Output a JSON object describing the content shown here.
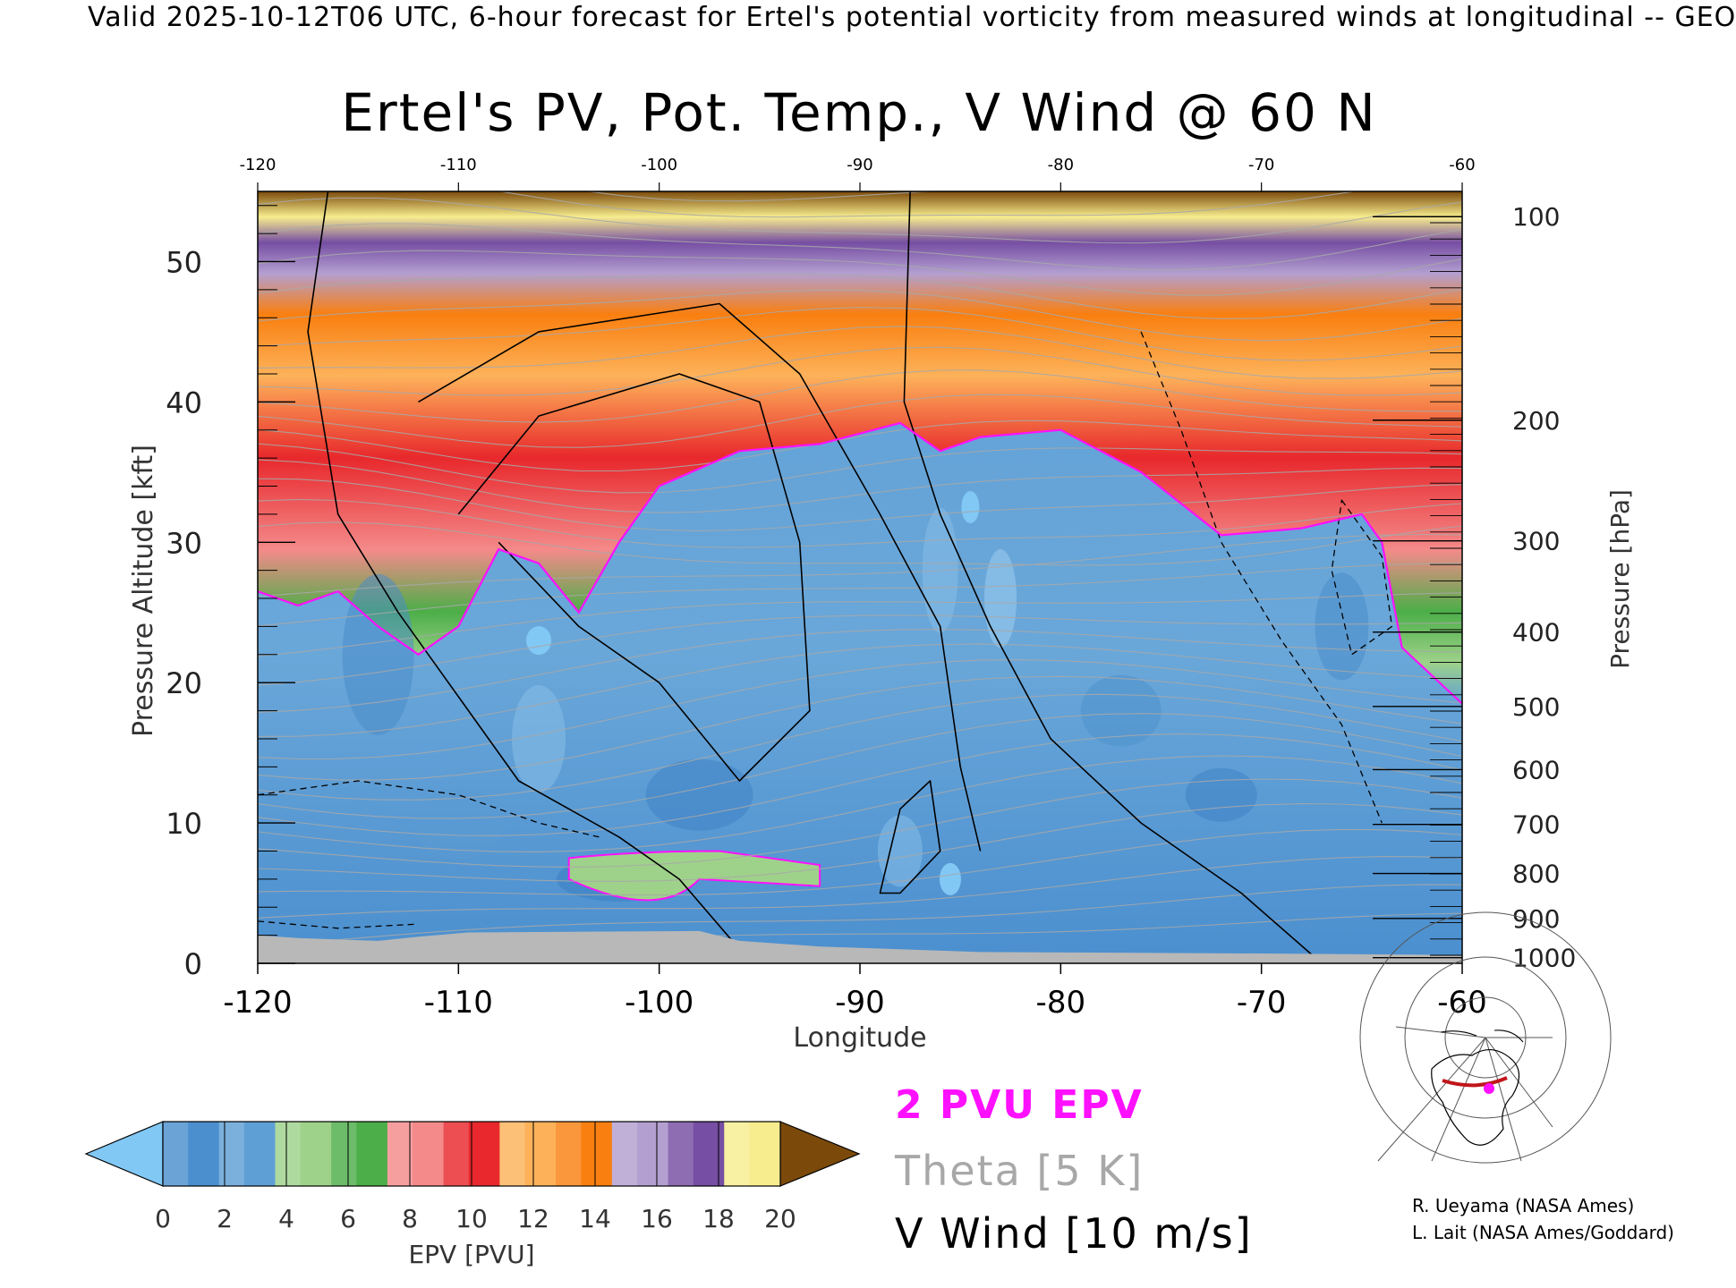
{
  "header": {
    "valid_line": "Valid 2025-10-12T06 UTC, 6-hour forecast for Ertel's potential vorticity from measured winds at longitudinal -- GEO"
  },
  "chart_data": {
    "type": "heatmap",
    "title": "Ertel's PV, Pot. Temp., V Wind @ 60 N",
    "xlabel": "Longitude",
    "ylabel": "Pressure Altitude [kft]",
    "y2label": "Pressure [hPa]",
    "xlim": [
      -120,
      -60
    ],
    "ylim": [
      0,
      55
    ],
    "x_ticks": [
      "-120",
      "-110",
      "-100",
      "-90",
      "-80",
      "-70",
      "-60"
    ],
    "x_ticks_top": [
      "-120",
      "-110",
      "-100",
      "-90",
      "-80",
      "-70",
      "-60"
    ],
    "y_ticks": [
      "0",
      "10",
      "20",
      "30",
      "40",
      "50"
    ],
    "pressure_ticks": [
      {
        "label": "100",
        "kft": 53.2
      },
      {
        "label": "200",
        "kft": 38.7
      },
      {
        "label": "300",
        "kft": 30.1
      },
      {
        "label": "400",
        "kft": 23.6
      },
      {
        "label": "500",
        "kft": 18.3
      },
      {
        "label": "600",
        "kft": 13.8
      },
      {
        "label": "700",
        "kft": 9.9
      },
      {
        "label": "800",
        "kft": 6.4
      },
      {
        "label": "900",
        "kft": 3.2
      },
      {
        "label": "1000",
        "kft": 0.4
      }
    ],
    "tropopause_2pvu_kft": [
      [
        -120,
        26.5
      ],
      [
        -118,
        25.5
      ],
      [
        -116,
        26.5
      ],
      [
        -114,
        24.0
      ],
      [
        -112,
        22.0
      ],
      [
        -110,
        24.0
      ],
      [
        -108,
        29.5
      ],
      [
        -106,
        28.5
      ],
      [
        -104,
        25.0
      ],
      [
        -102,
        30.0
      ],
      [
        -100,
        34.0
      ],
      [
        -96,
        36.5
      ],
      [
        -92,
        37.0
      ],
      [
        -88,
        38.5
      ],
      [
        -86,
        36.5
      ],
      [
        -84,
        37.5
      ],
      [
        -80,
        38.0
      ],
      [
        -76,
        35.0
      ],
      [
        -72,
        30.5
      ],
      [
        -68,
        31.0
      ],
      [
        -65,
        32.0
      ],
      [
        -64,
        30.0
      ],
      [
        -63,
        22.5
      ],
      [
        -60,
        18.5
      ]
    ],
    "pv_colorbar": {
      "label": "EPV [PVU]",
      "ticks": [
        "0",
        "2",
        "4",
        "6",
        "8",
        "10",
        "12",
        "14",
        "16",
        "18",
        "20"
      ],
      "colors": [
        "#4b8fcf",
        "#5e9fd5",
        "#9ed28a",
        "#4cae48",
        "#f48a8a",
        "#e8282c",
        "#fdb25a",
        "#f97f10",
        "#b39fd0",
        "#764ea3",
        "#f7ed8e"
      ],
      "under_color": "#82c8f5",
      "over_color": "#7b4a0b"
    },
    "legend": {
      "pv_contour": "2 PVU EPV",
      "theta": "Theta [5 K]",
      "wind": "V Wind [10 m/s]"
    },
    "colors": {
      "pv_contour": "#ff10ff",
      "theta": "#a8a8a8",
      "wind": "#000000",
      "terrain": "#b8b8b8",
      "map_path": "#c0161b",
      "map_marker": "#ff10ff"
    }
  },
  "credits": {
    "line1": "R. Ueyama (NASA Ames)",
    "line2": "L. Lait (NASA Ames/Goddard)"
  }
}
